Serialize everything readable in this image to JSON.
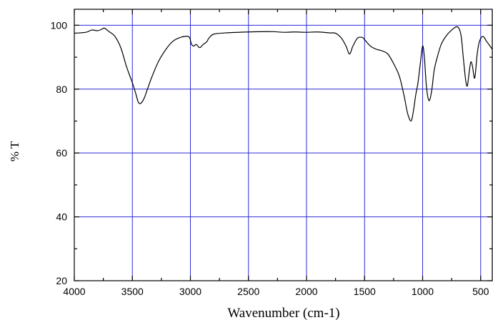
{
  "chart_data": {
    "type": "line",
    "title": "",
    "xlabel": "Wavenumber (cm-1)",
    "ylabel": "% T",
    "xlim": [
      4000,
      400
    ],
    "ylim": [
      20,
      105
    ],
    "x_reversed": true,
    "grid": true,
    "x_ticks": [
      4000,
      3500,
      3000,
      2500,
      2000,
      1500,
      1000,
      500
    ],
    "y_ticks": [
      20,
      40,
      60,
      80,
      100
    ],
    "series": [
      {
        "values": [
          [
            4000,
            97.5
          ],
          [
            3900,
            97.8
          ],
          [
            3850,
            98.5
          ],
          [
            3800,
            98.3
          ],
          [
            3760,
            98.8
          ],
          [
            3740,
            99.1
          ],
          [
            3700,
            98.0
          ],
          [
            3650,
            96.5
          ],
          [
            3600,
            93.0
          ],
          [
            3550,
            87.0
          ],
          [
            3500,
            82.0
          ],
          [
            3470,
            78.5
          ],
          [
            3450,
            76.0
          ],
          [
            3430,
            75.5
          ],
          [
            3400,
            77.0
          ],
          [
            3370,
            80.0
          ],
          [
            3330,
            84.0
          ],
          [
            3270,
            89.0
          ],
          [
            3200,
            93.0
          ],
          [
            3150,
            95.0
          ],
          [
            3100,
            96.0
          ],
          [
            3050,
            96.5
          ],
          [
            3010,
            96.3
          ],
          [
            2990,
            94.0
          ],
          [
            2970,
            93.5
          ],
          [
            2950,
            94.0
          ],
          [
            2920,
            93.0
          ],
          [
            2890,
            94.0
          ],
          [
            2860,
            94.8
          ],
          [
            2840,
            96.0
          ],
          [
            2800,
            97.2
          ],
          [
            2700,
            97.6
          ],
          [
            2500,
            97.9
          ],
          [
            2300,
            98.0
          ],
          [
            2200,
            97.8
          ],
          [
            2100,
            97.9
          ],
          [
            2000,
            97.8
          ],
          [
            1900,
            97.9
          ],
          [
            1800,
            97.6
          ],
          [
            1750,
            97.5
          ],
          [
            1700,
            96.0
          ],
          [
            1660,
            93.5
          ],
          [
            1630,
            91.0
          ],
          [
            1600,
            93.5
          ],
          [
            1560,
            96.0
          ],
          [
            1520,
            96.2
          ],
          [
            1500,
            95.5
          ],
          [
            1450,
            93.5
          ],
          [
            1400,
            92.5
          ],
          [
            1350,
            92.0
          ],
          [
            1300,
            91.0
          ],
          [
            1250,
            88.0
          ],
          [
            1200,
            84.0
          ],
          [
            1160,
            78.0
          ],
          [
            1130,
            72.5
          ],
          [
            1100,
            70.0
          ],
          [
            1080,
            73.0
          ],
          [
            1060,
            78.0
          ],
          [
            1040,
            82.0
          ],
          [
            1020,
            88.0
          ],
          [
            1000,
            93.5
          ],
          [
            985,
            90.0
          ],
          [
            970,
            82.0
          ],
          [
            955,
            77.5
          ],
          [
            940,
            76.5
          ],
          [
            920,
            80.0
          ],
          [
            900,
            86.0
          ],
          [
            870,
            90.5
          ],
          [
            840,
            94.0
          ],
          [
            800,
            96.5
          ],
          [
            750,
            98.5
          ],
          [
            700,
            99.5
          ],
          [
            670,
            97.0
          ],
          [
            650,
            90.0
          ],
          [
            630,
            83.0
          ],
          [
            615,
            81.0
          ],
          [
            600,
            85.0
          ],
          [
            585,
            88.5
          ],
          [
            570,
            87.0
          ],
          [
            555,
            83.5
          ],
          [
            545,
            85.0
          ],
          [
            530,
            91.0
          ],
          [
            510,
            95.0
          ],
          [
            480,
            96.5
          ],
          [
            450,
            95.0
          ],
          [
            420,
            93.5
          ],
          [
            400,
            92.5
          ]
        ]
      }
    ]
  }
}
